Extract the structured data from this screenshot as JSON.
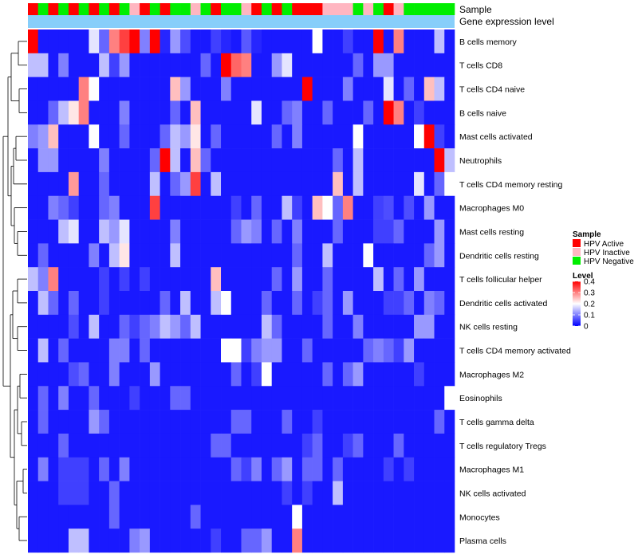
{
  "chart_data": {
    "type": "heatmap",
    "annotation_labels": [
      "Sample",
      "Gene expression level"
    ],
    "rows": [
      "B cells memory",
      "T cells CD8",
      "T cells CD4 naive",
      "B cells naive",
      "Mast cells activated",
      "Neutrophils",
      "T cells CD4 memory resting",
      "Macrophages M0",
      "Mast cells resting",
      "Dendritic cells resting",
      "T cells follicular helper",
      "Dendritic cells activated",
      "NK cells resting",
      "T cells CD4 memory activated",
      "Macrophages M2",
      "Eosinophils",
      "T cells gamma delta",
      "T cells regulatory  Tregs",
      "Macrophages M1",
      "NK cells activated",
      "Monocytes",
      "Plasma cells"
    ],
    "sample_groups": [
      "A",
      "N",
      "A",
      "N",
      "A",
      "N",
      "A",
      "N",
      "A",
      "N",
      "I",
      "A",
      "N",
      "A",
      "N",
      "N",
      "I",
      "N",
      "A",
      "N",
      "N",
      "I",
      "A",
      "N",
      "A",
      "N",
      "A",
      "A",
      "A",
      "I",
      "I",
      "I",
      "N",
      "I",
      "N",
      "A",
      "I",
      "N",
      "N",
      "N",
      "N",
      "N"
    ],
    "values": [
      [
        0.4,
        0.02,
        0.02,
        0.02,
        0.02,
        0.02,
        0.18,
        0.08,
        0.3,
        0.35,
        0.4,
        0.1,
        0.4,
        0.03,
        0.12,
        0.06,
        0.02,
        0.02,
        0.05,
        0.03,
        0.02,
        0.07,
        0.03,
        0.02,
        0.02,
        0.02,
        0.02,
        0.02,
        0.2,
        0.02,
        0.02,
        0.05,
        0.02,
        0.02,
        0.4,
        0.02,
        0.3,
        0.02,
        0.02,
        0.02,
        0.15,
        0.02
      ],
      [
        0.15,
        0.15,
        0.02,
        0.1,
        0.02,
        0.02,
        0.02,
        0.15,
        0.05,
        0.12,
        0.02,
        0.02,
        0.02,
        0.02,
        0.02,
        0.02,
        0.02,
        0.08,
        0.02,
        0.4,
        0.32,
        0.3,
        0.02,
        0.02,
        0.12,
        0.18,
        0.02,
        0.02,
        0.02,
        0.02,
        0.02,
        0.02,
        0.08,
        0.02,
        0.12,
        0.12,
        0.02,
        0.02,
        0.02,
        0.02,
        0.02,
        0.02
      ],
      [
        0.02,
        0.02,
        0.02,
        0.02,
        0.02,
        0.3,
        0.2,
        0.02,
        0.02,
        0.02,
        0.02,
        0.02,
        0.02,
        0.02,
        0.25,
        0.12,
        0.02,
        0.02,
        0.02,
        0.1,
        0.02,
        0.02,
        0.02,
        0.02,
        0.02,
        0.02,
        0.02,
        0.4,
        0.02,
        0.02,
        0.02,
        0.1,
        0.02,
        0.02,
        0.02,
        0.18,
        0.02,
        0.08,
        0.02,
        0.25,
        0.15,
        0.02
      ],
      [
        0.02,
        0.02,
        0.08,
        0.15,
        0.22,
        0.3,
        0.02,
        0.02,
        0.02,
        0.1,
        0.02,
        0.02,
        0.02,
        0.02,
        0.08,
        0.02,
        0.25,
        0.02,
        0.02,
        0.02,
        0.02,
        0.02,
        0.18,
        0.02,
        0.02,
        0.08,
        0.1,
        0.02,
        0.02,
        0.08,
        0.02,
        0.02,
        0.02,
        0.08,
        0.02,
        0.4,
        0.3,
        0.02,
        0.05,
        0.02,
        0.02,
        0.02
      ],
      [
        0.1,
        0.12,
        0.25,
        0.02,
        0.02,
        0.02,
        0.2,
        0.02,
        0.02,
        0.08,
        0.02,
        0.02,
        0.02,
        0.08,
        0.15,
        0.12,
        0.22,
        0.02,
        0.08,
        0.02,
        0.02,
        0.02,
        0.02,
        0.02,
        0.08,
        0.02,
        0.1,
        0.02,
        0.02,
        0.02,
        0.02,
        0.02,
        0.2,
        0.02,
        0.02,
        0.02,
        0.02,
        0.02,
        0.2,
        0.4,
        0.05,
        0.02
      ],
      [
        0.02,
        0.12,
        0.12,
        0.02,
        0.02,
        0.02,
        0.02,
        0.1,
        0.02,
        0.02,
        0.02,
        0.02,
        0.08,
        0.4,
        0.15,
        0.02,
        0.25,
        0.08,
        0.02,
        0.02,
        0.02,
        0.02,
        0.02,
        0.02,
        0.02,
        0.02,
        0.02,
        0.02,
        0.02,
        0.02,
        0.08,
        0.02,
        0.15,
        0.02,
        0.02,
        0.02,
        0.02,
        0.02,
        0.02,
        0.02,
        0.4,
        0.15
      ],
      [
        0.02,
        0.02,
        0.02,
        0.02,
        0.28,
        0.02,
        0.02,
        0.08,
        0.02,
        0.02,
        0.02,
        0.02,
        0.15,
        0.02,
        0.08,
        0.12,
        0.35,
        0.02,
        0.15,
        0.02,
        0.02,
        0.02,
        0.02,
        0.02,
        0.02,
        0.02,
        0.02,
        0.02,
        0.02,
        0.02,
        0.25,
        0.02,
        0.15,
        0.02,
        0.02,
        0.02,
        0.02,
        0.02,
        0.18,
        0.02,
        0.08,
        0.2
      ],
      [
        0.02,
        0.02,
        0.1,
        0.08,
        0.05,
        0.02,
        0.02,
        0.08,
        0.1,
        0.02,
        0.02,
        0.02,
        0.35,
        0.02,
        0.02,
        0.02,
        0.02,
        0.02,
        0.02,
        0.02,
        0.05,
        0.02,
        0.08,
        0.02,
        0.02,
        0.15,
        0.05,
        0.02,
        0.25,
        0.2,
        0.08,
        0.3,
        0.02,
        0.02,
        0.05,
        0.06,
        0.02,
        0.06,
        0.02,
        0.12,
        0.02,
        0.02
      ],
      [
        0.02,
        0.02,
        0.02,
        0.15,
        0.18,
        0.02,
        0.02,
        0.15,
        0.12,
        0.18,
        0.02,
        0.02,
        0.02,
        0.02,
        0.1,
        0.02,
        0.02,
        0.02,
        0.02,
        0.02,
        0.08,
        0.12,
        0.1,
        0.02,
        0.08,
        0.02,
        0.1,
        0.02,
        0.02,
        0.02,
        0.08,
        0.02,
        0.02,
        0.02,
        0.05,
        0.05,
        0.08,
        0.02,
        0.02,
        0.02,
        0.12,
        0.02
      ],
      [
        0.02,
        0.08,
        0.02,
        0.02,
        0.02,
        0.02,
        0.1,
        0.02,
        0.15,
        0.22,
        0.02,
        0.02,
        0.02,
        0.02,
        0.15,
        0.02,
        0.02,
        0.02,
        0.02,
        0.02,
        0.02,
        0.02,
        0.02,
        0.02,
        0.02,
        0.02,
        0.08,
        0.02,
        0.02,
        0.15,
        0.02,
        0.02,
        0.02,
        0.2,
        0.02,
        0.02,
        0.02,
        0.02,
        0.02,
        0.08,
        0.12,
        0.02
      ],
      [
        0.15,
        0.1,
        0.3,
        0.02,
        0.02,
        0.02,
        0.02,
        0.05,
        0.02,
        0.05,
        0.02,
        0.05,
        0.02,
        0.02,
        0.02,
        0.02,
        0.02,
        0.02,
        0.25,
        0.02,
        0.02,
        0.02,
        0.02,
        0.02,
        0.08,
        0.02,
        0.12,
        0.02,
        0.02,
        0.08,
        0.02,
        0.02,
        0.02,
        0.02,
        0.15,
        0.02,
        0.08,
        0.02,
        0.12,
        0.02,
        0.02,
        0.02
      ],
      [
        0.02,
        0.15,
        0.08,
        0.02,
        0.08,
        0.02,
        0.02,
        0.05,
        0.02,
        0.02,
        0.02,
        0.02,
        0.02,
        0.08,
        0.02,
        0.15,
        0.02,
        0.02,
        0.15,
        0.2,
        0.02,
        0.02,
        0.02,
        0.08,
        0.02,
        0.02,
        0.08,
        0.02,
        0.05,
        0.08,
        0.02,
        0.12,
        0.02,
        0.02,
        0.02,
        0.05,
        0.05,
        0.08,
        0.02,
        0.1,
        0.08,
        0.02
      ],
      [
        0.02,
        0.02,
        0.02,
        0.02,
        0.06,
        0.02,
        0.15,
        0.02,
        0.02,
        0.08,
        0.05,
        0.08,
        0.1,
        0.15,
        0.12,
        0.08,
        0.15,
        0.02,
        0.02,
        0.02,
        0.02,
        0.02,
        0.02,
        0.15,
        0.08,
        0.02,
        0.02,
        0.02,
        0.02,
        0.08,
        0.02,
        0.02,
        0.1,
        0.02,
        0.02,
        0.02,
        0.02,
        0.02,
        0.12,
        0.12,
        0.02,
        0.02
      ],
      [
        0.02,
        0.15,
        0.02,
        0.08,
        0.02,
        0.02,
        0.02,
        0.02,
        0.1,
        0.1,
        0.02,
        0.08,
        0.02,
        0.02,
        0.02,
        0.02,
        0.02,
        0.02,
        0.02,
        0.2,
        0.2,
        0.05,
        0.1,
        0.12,
        0.12,
        0.02,
        0.02,
        0.08,
        0.02,
        0.02,
        0.02,
        0.02,
        0.02,
        0.08,
        0.1,
        0.08,
        0.05,
        0.12,
        0.02,
        0.02,
        0.02,
        0.02
      ],
      [
        0.02,
        0.02,
        0.02,
        0.02,
        0.06,
        0.08,
        0.02,
        0.02,
        0.1,
        0.02,
        0.02,
        0.02,
        0.12,
        0.02,
        0.02,
        0.02,
        0.02,
        0.02,
        0.02,
        0.02,
        0.08,
        0.02,
        0.05,
        0.2,
        0.02,
        0.02,
        0.02,
        0.02,
        0.02,
        0.08,
        0.02,
        0.08,
        0.12,
        0.02,
        0.02,
        0.02,
        0.02,
        0.02,
        0.05,
        0.02,
        0.02,
        0.02
      ],
      [
        0.02,
        0.08,
        0.02,
        0.1,
        0.02,
        0.02,
        0.08,
        0.02,
        0.02,
        0.02,
        0.05,
        0.02,
        0.02,
        0.02,
        0.08,
        0.08,
        0.02,
        0.02,
        0.02,
        0.02,
        0.02,
        0.02,
        0.02,
        0.02,
        0.02,
        0.02,
        0.02,
        0.02,
        0.02,
        0.02,
        0.02,
        0.02,
        0.02,
        0.02,
        0.02,
        0.02,
        0.02,
        0.02,
        0.02,
        0.02,
        0.02,
        0.2
      ],
      [
        0.02,
        0.08,
        0.02,
        0.02,
        0.02,
        0.02,
        0.12,
        0.08,
        0.02,
        0.02,
        0.02,
        0.02,
        0.02,
        0.02,
        0.02,
        0.02,
        0.02,
        0.02,
        0.02,
        0.02,
        0.08,
        0.08,
        0.02,
        0.02,
        0.02,
        0.08,
        0.02,
        0.02,
        0.05,
        0.02,
        0.02,
        0.02,
        0.02,
        0.02,
        0.02,
        0.02,
        0.02,
        0.02,
        0.02,
        0.02,
        0.08,
        0.02
      ],
      [
        0.02,
        0.02,
        0.02,
        0.08,
        0.02,
        0.02,
        0.02,
        0.02,
        0.02,
        0.02,
        0.02,
        0.02,
        0.02,
        0.02,
        0.02,
        0.02,
        0.02,
        0.02,
        0.08,
        0.08,
        0.02,
        0.02,
        0.02,
        0.02,
        0.02,
        0.02,
        0.02,
        0.05,
        0.08,
        0.02,
        0.02,
        0.05,
        0.08,
        0.02,
        0.02,
        0.02,
        0.08,
        0.02,
        0.02,
        0.02,
        0.02,
        0.02
      ],
      [
        0.02,
        0.1,
        0.02,
        0.05,
        0.05,
        0.05,
        0.02,
        0.08,
        0.02,
        0.1,
        0.02,
        0.02,
        0.02,
        0.02,
        0.02,
        0.02,
        0.02,
        0.02,
        0.02,
        0.02,
        0.08,
        0.05,
        0.1,
        0.02,
        0.08,
        0.12,
        0.02,
        0.08,
        0.08,
        0.02,
        0.08,
        0.02,
        0.02,
        0.02,
        0.02,
        0.05,
        0.02,
        0.05,
        0.02,
        0.02,
        0.02,
        0.02
      ],
      [
        0.02,
        0.02,
        0.02,
        0.05,
        0.05,
        0.05,
        0.02,
        0.02,
        0.08,
        0.02,
        0.02,
        0.02,
        0.02,
        0.02,
        0.02,
        0.02,
        0.02,
        0.02,
        0.02,
        0.02,
        0.02,
        0.02,
        0.02,
        0.02,
        0.02,
        0.05,
        0.02,
        0.05,
        0.02,
        0.02,
        0.15,
        0.02,
        0.02,
        0.02,
        0.02,
        0.02,
        0.02,
        0.02,
        0.02,
        0.02,
        0.02,
        0.02
      ],
      [
        0.02,
        0.02,
        0.02,
        0.02,
        0.02,
        0.02,
        0.02,
        0.02,
        0.08,
        0.02,
        0.02,
        0.02,
        0.02,
        0.02,
        0.02,
        0.02,
        0.08,
        0.02,
        0.02,
        0.02,
        0.02,
        0.02,
        0.02,
        0.02,
        0.02,
        0.02,
        0.2,
        0.02,
        0.02,
        0.02,
        0.02,
        0.02,
        0.02,
        0.02,
        0.02,
        0.02,
        0.02,
        0.02,
        0.02,
        0.02,
        0.02,
        0.02
      ],
      [
        0.02,
        0.02,
        0.02,
        0.02,
        0.15,
        0.15,
        0.02,
        0.02,
        0.02,
        0.02,
        0.1,
        0.12,
        0.02,
        0.02,
        0.02,
        0.02,
        0.02,
        0.02,
        0.05,
        0.02,
        0.02,
        0.08,
        0.08,
        0.12,
        0.02,
        0.02,
        0.3,
        0.02,
        0.02,
        0.02,
        0.02,
        0.02,
        0.02,
        0.02,
        0.02,
        0.02,
        0.02,
        0.02,
        0.02,
        0.02,
        0.02,
        0.02
      ]
    ],
    "sample_legend": {
      "title": "Sample",
      "entries": [
        {
          "key": "A",
          "label": "HPV Active",
          "color": "#ff0000"
        },
        {
          "key": "I",
          "label": "HPV Inactive",
          "color": "#ffb6c1"
        },
        {
          "key": "N",
          "label": "HPV Negative",
          "color": "#00ee00"
        }
      ]
    },
    "gene_expression_color": "#87cefa",
    "color_scale": {
      "title": "Level",
      "min": 0,
      "max": 0.4,
      "low_color": "#0000ff",
      "mid_color": "#ffffff",
      "mid_value": 0.2,
      "high_color": "#ff0000",
      "ticks": [
        0,
        0.1,
        0.2,
        0.3,
        0.4
      ]
    },
    "row_dendrogram": true
  }
}
